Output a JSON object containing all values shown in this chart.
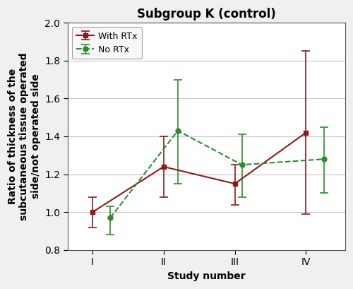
{
  "title": "Subgroup K (control)",
  "xlabel": "Study number",
  "ylabel": "Ratio of thickness of the\nsubcutaneous tissue operated\nside/not operated side",
  "xlim": [
    0.65,
    4.55
  ],
  "ylim": [
    0.8,
    2.0
  ],
  "yticks": [
    0.8,
    1.0,
    1.2,
    1.4,
    1.6,
    1.8,
    2.0
  ],
  "xtick_labels": [
    "I",
    "II",
    "III",
    "IV"
  ],
  "xtick_positions": [
    1,
    2,
    3,
    4
  ],
  "with_rtx": {
    "x": [
      1.0,
      2.0,
      3.0,
      4.0
    ],
    "y": [
      1.0,
      1.24,
      1.15,
      1.42
    ],
    "yerr_low": [
      0.08,
      0.16,
      0.11,
      0.43
    ],
    "yerr_high": [
      0.08,
      0.16,
      0.1,
      0.43
    ],
    "color": "#8B1A1A",
    "linestyle": "-",
    "marker": "s",
    "markersize": 5,
    "label": "With RTx"
  },
  "no_rtx": {
    "x": [
      1.25,
      2.2,
      3.1,
      4.25
    ],
    "y": [
      0.97,
      1.43,
      1.25,
      1.28
    ],
    "yerr_low": [
      0.09,
      0.28,
      0.17,
      0.18
    ],
    "yerr_high": [
      0.06,
      0.27,
      0.16,
      0.17
    ],
    "color": "#2E8B2E",
    "linestyle": "--",
    "marker": "o",
    "markersize": 5,
    "label": "No RTx"
  },
  "bg_color": "#f0f0f0",
  "plot_bg_color": "#ffffff",
  "grid_color": "#c8c8c8",
  "legend_loc": "upper left",
  "title_fontsize": 12,
  "axis_label_fontsize": 10,
  "tick_fontsize": 10
}
